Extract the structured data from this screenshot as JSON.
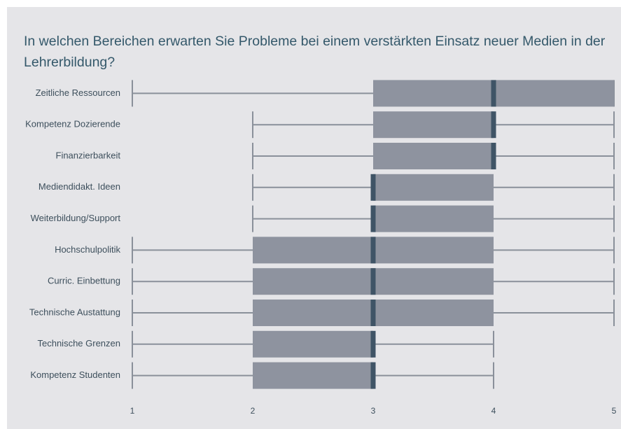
{
  "chart_data": {
    "type": "box",
    "title": "In welchen Bereichen erwarten Sie Probleme bei einem verstärkten Einsatz neuer Medien in der Lehrerbildung?",
    "categories": [
      "Zeitliche Ressourcen",
      "Kompetenz Dozierende",
      "Finanzierbarkeit",
      "Mediendidakt. Ideen",
      "Weiterbildung/Support",
      "Hochschulpolitik",
      "Curric. Einbettung",
      "Technische Austattung",
      "Technische Grenzen",
      "Kompetenz Studenten"
    ],
    "min": [
      1,
      2,
      2,
      2,
      2,
      1,
      1,
      1,
      1,
      1
    ],
    "q1": [
      3,
      3,
      3,
      3,
      3,
      2,
      2,
      2,
      2,
      2
    ],
    "median": [
      4,
      4,
      4,
      3,
      3,
      3,
      3,
      3,
      3,
      3
    ],
    "q3": [
      5,
      4,
      4,
      4,
      4,
      4,
      4,
      4,
      3,
      3
    ],
    "max": [
      5,
      5,
      5,
      5,
      5,
      5,
      5,
      5,
      4,
      4
    ],
    "xlim": [
      1,
      5
    ],
    "xticks": [
      1,
      2,
      3,
      4,
      5
    ],
    "box_color": "#8e939f",
    "median_color": "#3f5466",
    "whisker_color": "#8a909a"
  }
}
